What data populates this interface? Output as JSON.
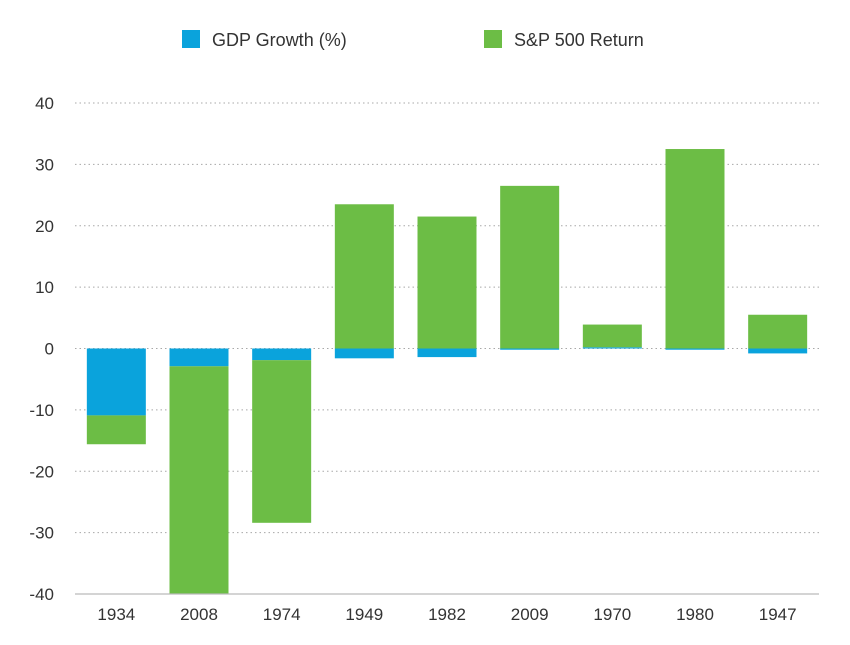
{
  "chart_data": {
    "type": "bar",
    "stacked": true,
    "categories": [
      "1934",
      "2008",
      "1974",
      "1949",
      "1982",
      "2009",
      "1970",
      "1980",
      "1947"
    ],
    "series": [
      {
        "name": "GDP Growth (%)",
        "color": "#0aa3dc",
        "values": [
          -10.9,
          -2.9,
          -1.9,
          -1.6,
          -1.4,
          -0.2,
          0.2,
          -0.2,
          -0.8
        ]
      },
      {
        "name": "S&P 500 Return",
        "color": "#6cbd45",
        "values": [
          -4.7,
          -37.0,
          -26.5,
          23.5,
          21.5,
          26.5,
          3.7,
          32.5,
          5.5
        ]
      }
    ],
    "ylim": [
      -40,
      40
    ],
    "yticks": [
      -40,
      -30,
      -20,
      -10,
      0,
      10,
      20,
      30,
      40
    ],
    "grid": true,
    "legend_position": "top",
    "title": "",
    "xlabel": "",
    "ylabel": ""
  }
}
